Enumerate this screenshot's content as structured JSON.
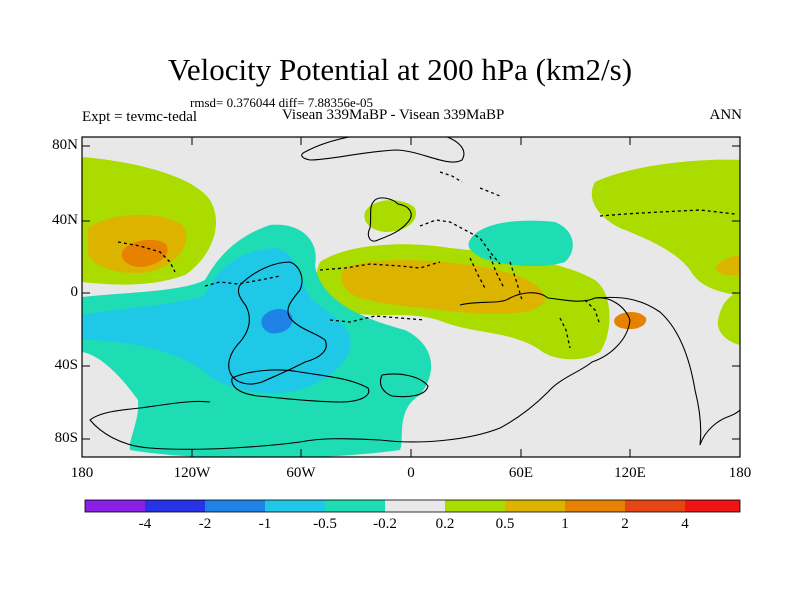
{
  "title": "Velocity Potential at 200 hPa (km2/s)",
  "stats": "rmsd= 0.376044 diff= 7.88356e-05",
  "expt_label": "Expt = tevmc-tedal",
  "subtitle": "Visean 339MaBP - Visean 339MaBP",
  "season": "ANN",
  "lat_labels": [
    "80N",
    "40N",
    "0",
    "40S",
    "80S"
  ],
  "lon_labels": [
    "180",
    "120W",
    "60W",
    "0",
    "60E",
    "120E",
    "180"
  ],
  "colorbar": {
    "labels": [
      "-4",
      "-2",
      "-1",
      "-0.5",
      "-0.2",
      "0.2",
      "0.5",
      "1",
      "2",
      "4"
    ],
    "colors": [
      "#8a1fe6",
      "#2832e6",
      "#1e82e6",
      "#1ec8e6",
      "#1edcb4",
      "#e8e8e8",
      "#aadc00",
      "#dcb400",
      "#e68200",
      "#e64614",
      "#f01414"
    ]
  },
  "map": {
    "fields": {
      "neutral": "#e8e8e8",
      "pos1": "#aadc00",
      "pos2": "#dcb400",
      "pos3": "#e68200",
      "neg1": "#1edcb4",
      "neg2": "#1ec8e6",
      "neg3": "#1e82e6"
    },
    "coastline_color": "#000000"
  }
}
